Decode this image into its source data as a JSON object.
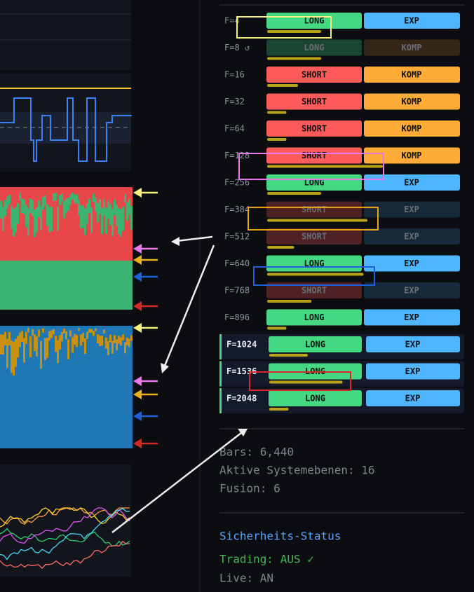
{
  "rows": [
    {
      "label": "F=4",
      "direction": "LONG",
      "mode": "EXP",
      "strength": 28,
      "dim": false,
      "highlight": false
    },
    {
      "label": "F=8 ↺",
      "direction": "LONG",
      "mode": "KOMP",
      "strength": 28,
      "dim": true,
      "highlight": false
    },
    {
      "label": "F=16",
      "direction": "SHORT",
      "mode": "KOMP",
      "strength": 16,
      "dim": false,
      "highlight": false
    },
    {
      "label": "F=32",
      "direction": "SHORT",
      "mode": "KOMP",
      "strength": 10,
      "dim": false,
      "highlight": false
    },
    {
      "label": "F=64",
      "direction": "SHORT",
      "mode": "KOMP",
      "strength": 10,
      "dim": false,
      "highlight": false
    },
    {
      "label": "F=128",
      "direction": "SHORT",
      "mode": "KOMP",
      "strength": 60,
      "dim": false,
      "highlight": false
    },
    {
      "label": "F=256",
      "direction": "LONG",
      "mode": "EXP",
      "strength": 28,
      "dim": false,
      "highlight": false
    },
    {
      "label": "F=384",
      "direction": "SHORT",
      "mode": "EXP",
      "strength": 52,
      "dim": true,
      "highlight": false
    },
    {
      "label": "F=512",
      "direction": "SHORT",
      "mode": "EXP",
      "strength": 14,
      "dim": true,
      "highlight": false
    },
    {
      "label": "F=640",
      "direction": "LONG",
      "mode": "EXP",
      "strength": 50,
      "dim": false,
      "highlight": false
    },
    {
      "label": "F=768",
      "direction": "SHORT",
      "mode": "EXP",
      "strength": 23,
      "dim": true,
      "highlight": false
    },
    {
      "label": "F=896",
      "direction": "LONG",
      "mode": "EXP",
      "strength": 10,
      "dim": false,
      "highlight": false
    },
    {
      "label": "F=1024",
      "direction": "LONG",
      "mode": "EXP",
      "strength": 20,
      "dim": false,
      "highlight": true
    },
    {
      "label": "F=1536",
      "direction": "LONG",
      "mode": "EXP",
      "strength": 38,
      "dim": false,
      "highlight": true
    },
    {
      "label": "F=2048",
      "direction": "LONG",
      "mode": "EXP",
      "strength": 10,
      "dim": false,
      "highlight": true
    }
  ],
  "colors": {
    "LONG": "#44d882",
    "SHORT": "#ff5b5b",
    "EXP": "#4db6ff",
    "KOMP": "#ffab38",
    "bar": "#b8a21a"
  },
  "stats": {
    "bars": "Bars: 6,440",
    "levels": "Aktive Systemebenen: 16",
    "fusion": "Fusion: 6"
  },
  "security": {
    "title": "Sicherheits-Status",
    "trading": "Trading: AUS ✓",
    "live": "Live: AN"
  }
}
